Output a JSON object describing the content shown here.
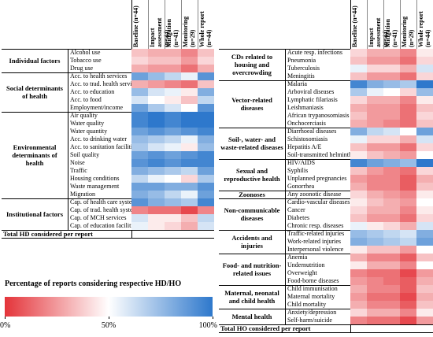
{
  "chart_data": [
    {
      "type": "heatmap",
      "columns": [
        "Baseline (n=44)",
        "Impact assessment (n=44)",
        "Mitigation (n=41)",
        "Monitoring (n=29)",
        "Whole report (n=44)"
      ],
      "groups": [
        {
          "label": "Individual factors",
          "rows": [
            {
              "label": "Alcohol use",
              "values": [
                35,
                30,
                30,
                20,
                35
              ]
            },
            {
              "label": "Tobacco use",
              "values": [
                40,
                35,
                35,
                25,
                40
              ]
            },
            {
              "label": "Drug use",
              "values": [
                30,
                25,
                25,
                15,
                30
              ]
            }
          ]
        },
        {
          "label": "Social determinants of health",
          "rows": [
            {
              "label": "Acc. to health services",
              "values": [
                85,
                75,
                65,
                55,
                90
              ]
            },
            {
              "label": "Acc. to trad. health services",
              "values": [
                30,
                25,
                20,
                15,
                35
              ]
            },
            {
              "label": "Acc. to education",
              "values": [
                75,
                60,
                55,
                45,
                80
              ]
            },
            {
              "label": "Acc. to food",
              "values": [
                60,
                50,
                45,
                35,
                65
              ]
            },
            {
              "label": "Employment/income",
              "values": [
                85,
                70,
                60,
                50,
                90
              ]
            }
          ]
        },
        {
          "label": "Environmental determinants of health",
          "rows": [
            {
              "label": "Air quality",
              "values": [
                95,
                100,
                95,
                100,
                100
              ]
            },
            {
              "label": "Water quality",
              "values": [
                95,
                100,
                95,
                100,
                100
              ]
            },
            {
              "label": "Water quantity",
              "values": [
                85,
                90,
                85,
                90,
                95
              ]
            },
            {
              "label": "Acc. to drinking water",
              "values": [
                75,
                70,
                65,
                55,
                80
              ]
            },
            {
              "label": "Acc. to sanitation facilities",
              "values": [
                70,
                60,
                55,
                45,
                75
              ]
            },
            {
              "label": "Soil quality",
              "values": [
                85,
                90,
                85,
                90,
                95
              ]
            },
            {
              "label": "Noise",
              "values": [
                90,
                95,
                90,
                95,
                95
              ]
            },
            {
              "label": "Traffic",
              "values": [
                80,
                75,
                70,
                65,
                85
              ]
            },
            {
              "label": "Housing conditions",
              "values": [
                65,
                55,
                50,
                40,
                70
              ]
            },
            {
              "label": "Waste management",
              "values": [
                85,
                85,
                80,
                80,
                90
              ]
            },
            {
              "label": "Migration",
              "values": [
                80,
                75,
                65,
                55,
                85
              ]
            }
          ]
        },
        {
          "label": "Institutional factors",
          "rows": [
            {
              "label": "Cap. of health care system",
              "values": [
                90,
                80,
                75,
                70,
                95
              ]
            },
            {
              "label": "Cap. of trad. health system",
              "values": [
                20,
                15,
                15,
                5,
                20
              ]
            },
            {
              "label": "Cap. of MCH services",
              "values": [
                60,
                45,
                45,
                35,
                65
              ]
            },
            {
              "label": "Cap. of education facilities",
              "values": [
                55,
                45,
                40,
                30,
                60
              ]
            }
          ]
        }
      ],
      "total": "Total HD considered per report"
    },
    {
      "type": "heatmap",
      "columns": [
        "Baseline (n=44)",
        "Impact assessment (n=44)",
        "Mitigation (n=41)",
        "Monitoring (n=29)",
        "Whole report (n=44)"
      ],
      "groups": [
        {
          "label": "CDs related to housing and overcrowding",
          "rows": [
            {
              "label": "Acute resp. infections",
              "values": [
                40,
                30,
                30,
                20,
                45
              ]
            },
            {
              "label": "Pneumonia",
              "values": [
                35,
                25,
                25,
                15,
                40
              ]
            },
            {
              "label": "Tuberculosis",
              "values": [
                55,
                40,
                40,
                30,
                60
              ]
            },
            {
              "label": "Meningitis",
              "values": [
                35,
                25,
                25,
                15,
                40
              ]
            }
          ]
        },
        {
          "label": "Vector-related diseases",
          "rows": [
            {
              "label": "Malaria",
              "values": [
                95,
                80,
                75,
                70,
                100
              ]
            },
            {
              "label": "Arboviral diseases",
              "values": [
                70,
                55,
                50,
                40,
                75
              ]
            },
            {
              "label": "Lymphatic filariasis",
              "values": [
                40,
                30,
                30,
                20,
                45
              ]
            },
            {
              "label": "Leishmaniasis",
              "values": [
                30,
                25,
                25,
                15,
                35
              ]
            },
            {
              "label": "African trypanosomiasis",
              "values": [
                35,
                25,
                25,
                15,
                40
              ]
            },
            {
              "label": "Onchocerciasis",
              "values": [
                30,
                25,
                20,
                15,
                35
              ]
            }
          ]
        },
        {
          "label": "Soil-, water- and waste-related diseases",
          "rows": [
            {
              "label": "Diarrhoeal diseases",
              "values": [
                80,
                65,
                60,
                50,
                85
              ]
            },
            {
              "label": "Schistosomiasis",
              "values": [
                55,
                40,
                40,
                30,
                60
              ]
            },
            {
              "label": "Hepatitis A/E",
              "values": [
                35,
                25,
                25,
                15,
                40
              ]
            },
            {
              "label": "Soil-transmitted helminths",
              "values": [
                45,
                35,
                30,
                25,
                50
              ]
            }
          ]
        },
        {
          "label": "Sexual and reproductive health",
          "rows": [
            {
              "label": "HIV/AIDS",
              "values": [
                95,
                85,
                80,
                75,
                100
              ]
            },
            {
              "label": "Syphilis",
              "values": [
                35,
                25,
                20,
                15,
                40
              ]
            },
            {
              "label": "Unplanned pregnancies",
              "values": [
                25,
                20,
                20,
                10,
                30
              ]
            },
            {
              "label": "Gonorrhea",
              "values": [
                30,
                20,
                20,
                10,
                35
              ]
            }
          ]
        },
        {
          "label": "Zoonoses",
          "rows": [
            {
              "label": "Any zoonotic disease",
              "values": [
                40,
                30,
                25,
                20,
                45
              ]
            }
          ]
        },
        {
          "label": "Non-communicable diseases",
          "rows": [
            {
              "label": "Cardio-vascular diseases",
              "values": [
                45,
                35,
                30,
                25,
                50
              ]
            },
            {
              "label": "Cancer",
              "values": [
                40,
                30,
                30,
                20,
                45
              ]
            },
            {
              "label": "Diabetes",
              "values": [
                35,
                25,
                25,
                15,
                40
              ]
            },
            {
              "label": "Chronic resp. diseases",
              "values": [
                55,
                45,
                40,
                30,
                60
              ]
            }
          ]
        },
        {
          "label": "Accidents and injuries",
          "rows": [
            {
              "label": "Traffic-related injuries",
              "values": [
                75,
                70,
                65,
                60,
                80
              ]
            },
            {
              "label": "Work-related injuries",
              "values": [
                80,
                75,
                70,
                65,
                85
              ]
            },
            {
              "label": "Interpersonal violence",
              "values": [
                45,
                35,
                35,
                25,
                50
              ]
            }
          ]
        },
        {
          "label": "Food- and nutrition-related issues",
          "rows": [
            {
              "label": "Anemia",
              "values": [
                30,
                20,
                20,
                10,
                35
              ]
            },
            {
              "label": "Undernutrition",
              "values": [
                45,
                30,
                30,
                20,
                50
              ]
            },
            {
              "label": "Overweight",
              "values": [
                20,
                15,
                15,
                5,
                25
              ]
            },
            {
              "label": "Food-borne diseases",
              "values": [
                25,
                20,
                15,
                10,
                30
              ]
            }
          ]
        },
        {
          "label": "Maternal, neonatal and child health",
          "rows": [
            {
              "label": "Child immunisation",
              "values": [
                30,
                20,
                20,
                10,
                35
              ]
            },
            {
              "label": "Maternal mortality",
              "values": [
                25,
                15,
                15,
                5,
                30
              ]
            },
            {
              "label": "Child mortality",
              "values": [
                30,
                20,
                20,
                10,
                35
              ]
            }
          ]
        },
        {
          "label": "Mental health",
          "rows": [
            {
              "label": "Anxiety/depression",
              "values": [
                40,
                30,
                30,
                20,
                45
              ]
            },
            {
              "label": "Self-harm/suicide",
              "values": [
                20,
                15,
                15,
                5,
                25
              ]
            }
          ]
        }
      ],
      "total": "Total HO considered per report"
    }
  ],
  "legend": {
    "title": "Percentage of reports considering respective HD/HO",
    "lim": [
      0,
      100
    ],
    "ticks": [
      {
        "value": 0,
        "label": "0%"
      },
      {
        "value": 50,
        "label": "50%"
      },
      {
        "value": 100,
        "label": "100%"
      }
    ],
    "colors": {
      "low": "#e4343a",
      "mid": "#ffffff",
      "high": "#2e78cc"
    }
  }
}
